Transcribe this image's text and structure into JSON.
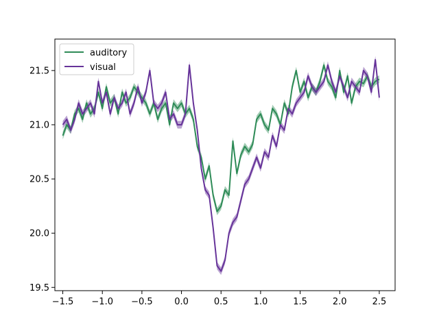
{
  "chart_data": {
    "type": "line",
    "title": "",
    "xlabel": "",
    "ylabel": "",
    "xlim": [
      -1.6,
      2.7
    ],
    "ylim": [
      19.47,
      21.79
    ],
    "xticks": [
      -1.5,
      -1.0,
      -0.5,
      0.0,
      0.5,
      1.0,
      1.5,
      2.0,
      2.5
    ],
    "xtick_labels": [
      "−1.5",
      "−1.0",
      "−0.5",
      "0.0",
      "0.5",
      "1.0",
      "1.5",
      "2.0",
      "2.5"
    ],
    "yticks": [
      19.5,
      20.0,
      20.5,
      21.0,
      21.5
    ],
    "ytick_labels": [
      "19.5",
      "20.0",
      "20.5",
      "21.0",
      "21.5"
    ],
    "grid": false,
    "legend": "top-left",
    "series": [
      {
        "name": "auditory",
        "color": "#2e8b57",
        "band_halfwidth": 0.035,
        "x": [
          -1.5,
          -1.45,
          -1.4,
          -1.35,
          -1.3,
          -1.25,
          -1.2,
          -1.15,
          -1.1,
          -1.05,
          -1.0,
          -0.95,
          -0.9,
          -0.85,
          -0.8,
          -0.75,
          -0.7,
          -0.65,
          -0.6,
          -0.55,
          -0.5,
          -0.45,
          -0.4,
          -0.35,
          -0.3,
          -0.25,
          -0.2,
          -0.15,
          -0.1,
          -0.05,
          0.0,
          0.05,
          0.1,
          0.15,
          0.2,
          0.25,
          0.3,
          0.35,
          0.4,
          0.45,
          0.5,
          0.55,
          0.6,
          0.65,
          0.7,
          0.75,
          0.8,
          0.85,
          0.9,
          0.95,
          1.0,
          1.05,
          1.1,
          1.15,
          1.2,
          1.25,
          1.3,
          1.35,
          1.4,
          1.45,
          1.5,
          1.55,
          1.6,
          1.65,
          1.7,
          1.75,
          1.8,
          1.85,
          1.9,
          1.95,
          2.0,
          2.05,
          2.1,
          2.15,
          2.2,
          2.25,
          2.3,
          2.35,
          2.4,
          2.45,
          2.5
        ],
        "values": [
          20.9,
          21.0,
          20.95,
          21.1,
          21.15,
          21.05,
          21.2,
          21.1,
          21.15,
          21.3,
          21.15,
          21.35,
          21.2,
          21.25,
          21.1,
          21.3,
          21.2,
          21.25,
          21.35,
          21.3,
          21.25,
          21.2,
          21.1,
          21.2,
          21.05,
          21.15,
          21.2,
          21.0,
          21.2,
          21.15,
          21.2,
          21.1,
          21.15,
          21.05,
          20.8,
          20.7,
          20.5,
          20.62,
          20.35,
          20.2,
          20.25,
          20.4,
          20.35,
          20.85,
          20.55,
          20.72,
          20.8,
          20.75,
          20.82,
          21.05,
          21.1,
          21.0,
          20.95,
          21.15,
          21.1,
          21.0,
          21.2,
          21.1,
          21.35,
          21.5,
          21.3,
          21.4,
          21.25,
          21.35,
          21.3,
          21.4,
          21.55,
          21.4,
          21.35,
          21.25,
          21.5,
          21.3,
          21.45,
          21.2,
          21.35,
          21.4,
          21.38,
          21.45,
          21.35,
          21.4,
          21.42
        ]
      },
      {
        "name": "visual",
        "color": "#663399",
        "band_halfwidth": 0.035,
        "x": [
          -1.5,
          -1.45,
          -1.4,
          -1.35,
          -1.3,
          -1.25,
          -1.2,
          -1.15,
          -1.1,
          -1.05,
          -1.0,
          -0.95,
          -0.9,
          -0.85,
          -0.8,
          -0.75,
          -0.7,
          -0.65,
          -0.6,
          -0.55,
          -0.5,
          -0.45,
          -0.4,
          -0.35,
          -0.3,
          -0.25,
          -0.2,
          -0.15,
          -0.1,
          -0.05,
          0.0,
          0.05,
          0.1,
          0.15,
          0.2,
          0.25,
          0.3,
          0.35,
          0.4,
          0.45,
          0.5,
          0.55,
          0.6,
          0.65,
          0.7,
          0.75,
          0.8,
          0.85,
          0.9,
          0.95,
          1.0,
          1.05,
          1.1,
          1.15,
          1.2,
          1.25,
          1.3,
          1.35,
          1.4,
          1.45,
          1.5,
          1.55,
          1.6,
          1.65,
          1.7,
          1.75,
          1.8,
          1.85,
          1.9,
          1.95,
          2.0,
          2.05,
          2.1,
          2.15,
          2.2,
          2.25,
          2.3,
          2.35,
          2.4,
          2.45,
          2.5
        ],
        "values": [
          21.0,
          21.05,
          20.95,
          21.05,
          21.2,
          21.1,
          21.15,
          21.2,
          21.1,
          21.4,
          21.2,
          21.3,
          21.1,
          21.25,
          21.15,
          21.2,
          21.3,
          21.1,
          21.2,
          21.35,
          21.2,
          21.3,
          21.5,
          21.2,
          21.15,
          21.2,
          21.3,
          21.05,
          21.1,
          21.0,
          21.0,
          21.1,
          21.55,
          21.2,
          20.95,
          20.6,
          20.4,
          20.35,
          20.05,
          19.7,
          19.65,
          19.75,
          20.0,
          20.1,
          20.15,
          20.3,
          20.45,
          20.5,
          20.6,
          20.7,
          20.6,
          20.75,
          20.7,
          20.9,
          20.8,
          21.0,
          20.95,
          21.15,
          21.1,
          21.2,
          21.25,
          21.3,
          21.45,
          21.35,
          21.3,
          21.35,
          21.4,
          21.55,
          21.4,
          21.3,
          21.45,
          21.35,
          21.25,
          21.4,
          21.35,
          21.3,
          21.5,
          21.45,
          21.3,
          21.6,
          21.25
        ]
      }
    ]
  }
}
